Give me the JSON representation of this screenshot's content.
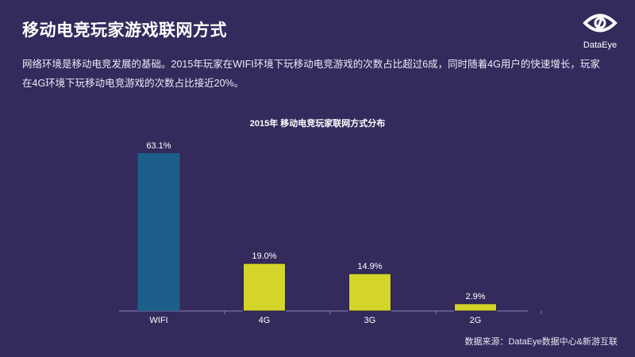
{
  "header": {
    "title": "移动电竞玩家游戏联网方式",
    "logo_text": "DataEye",
    "intro": "网络环境是移动电竞发展的基础。2015年玩家在WIFI环境下玩移动电竞游戏的次数占比超过6成，同时随着4G用户的快速增长，玩家在4G环境下玩移动电竞游戏的次数占比接近20%。"
  },
  "chart_data": {
    "type": "bar",
    "title": "2015年 移动电竞玩家联网方式分布",
    "categories": [
      "WIFI",
      "4G",
      "3G",
      "2G"
    ],
    "values": [
      63.1,
      19.0,
      14.9,
      2.9
    ],
    "labels": [
      "63.1%",
      "19.0%",
      "14.9%",
      "2.9%"
    ],
    "colors": [
      "#1b5f8a",
      "#d3d52a",
      "#d3d52a",
      "#d3d52a"
    ],
    "ylim": [
      0,
      70
    ],
    "grid": false,
    "legend": "none"
  },
  "footer": {
    "source": "数据来源：DataEye数据中心&新游互联"
  }
}
